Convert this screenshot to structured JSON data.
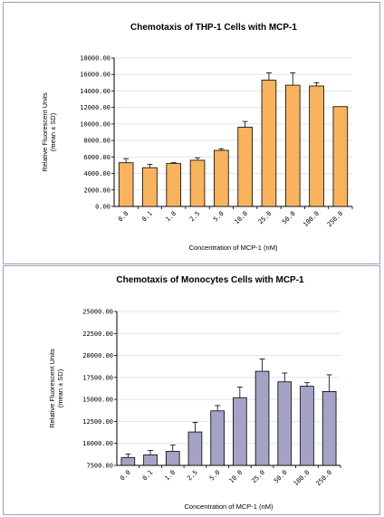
{
  "chart_data": [
    {
      "type": "bar",
      "title": "Chemotaxis of THP-1 Cells with MCP-1",
      "xlabel": "Concentration of MCP-1 (nM)",
      "ylabel_line1": "Relative Fluorescent Units",
      "ylabel_line2": "(mean ± SD)",
      "categories": [
        "0.0",
        "0.1",
        "1.0",
        "2.5",
        "5.0",
        "10.0",
        "25.0",
        "50.0",
        "100.0",
        "250.0"
      ],
      "values": [
        5300,
        4700,
        5200,
        5600,
        6800,
        9600,
        15300,
        14700,
        14600,
        12100
      ],
      "errors": [
        500,
        400,
        100,
        300,
        200,
        700,
        900,
        1500,
        400,
        0
      ],
      "ylim": [
        0,
        18000
      ],
      "yticks": [
        0,
        2000,
        4000,
        6000,
        8000,
        10000,
        12000,
        14000,
        16000,
        18000
      ],
      "ytick_labels": [
        "0.00",
        "2000.00",
        "4000.00",
        "6000.00",
        "8000.00",
        "10000.00",
        "12000.00",
        "14000.00",
        "16000.00",
        "18000.00"
      ],
      "grid": true,
      "bar_color": "#f9b35c"
    },
    {
      "type": "bar",
      "title": "Chemotaxis of Monocytes Cells with MCP-1",
      "xlabel": "Concentration of MCP-1 (nM)",
      "ylabel_line1": "Relative Fluorescent Units",
      "ylabel_line2": "(mean ± SD)",
      "categories": [
        "0.0",
        "0.1",
        "1.0",
        "2.5",
        "5.0",
        "10.0",
        "25.0",
        "50.0",
        "100.0",
        "250.0"
      ],
      "values": [
        8400,
        8700,
        9100,
        11300,
        13700,
        15200,
        18200,
        17000,
        16500,
        15900
      ],
      "errors": [
        400,
        500,
        700,
        1100,
        600,
        1200,
        1400,
        1000,
        400,
        1900
      ],
      "ylim": [
        7500,
        25000
      ],
      "yticks": [
        7500,
        10000,
        12500,
        15000,
        17500,
        20000,
        22500,
        25000
      ],
      "ytick_labels": [
        "7500.00",
        "10000.00",
        "12500.00",
        "15000.00",
        "17500.00",
        "20000.00",
        "22500.00",
        "25000.00"
      ],
      "grid": true,
      "bar_color": "#a4a3c6"
    }
  ]
}
